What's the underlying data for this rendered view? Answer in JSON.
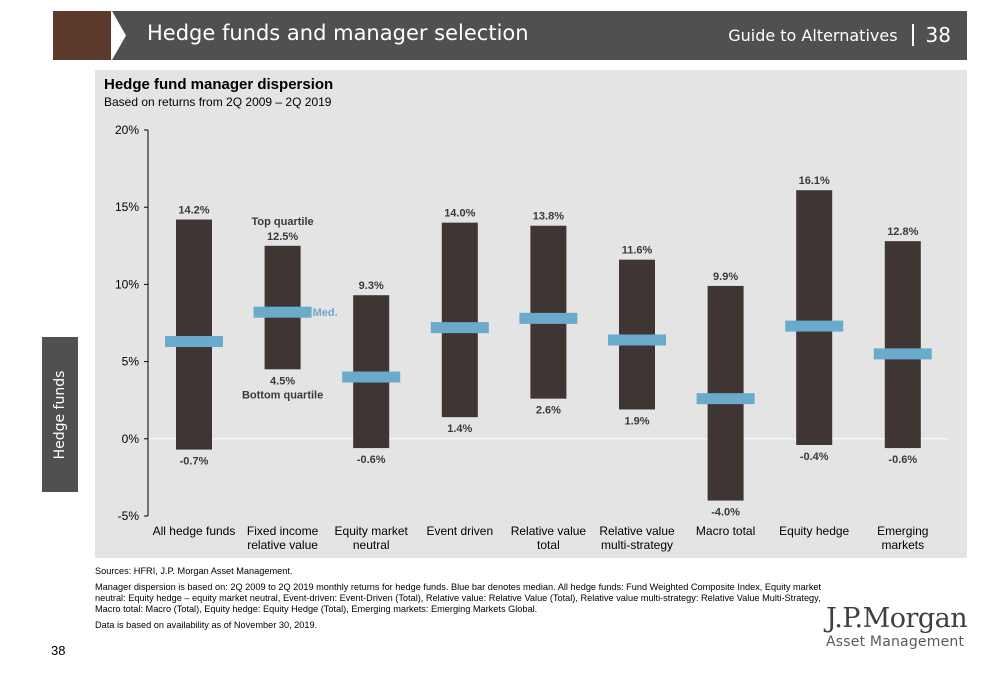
{
  "header": {
    "title": "Hedge funds and manager selection",
    "guide": "Guide to Alternatives",
    "page": "38"
  },
  "side_tab": "Hedge funds",
  "chart_data": {
    "type": "bar",
    "title": "Hedge fund manager dispersion",
    "subtitle": "Based on returns from 2Q 2009 – 2Q 2019",
    "ylim": [
      -5,
      20
    ],
    "yticks": [
      "20%",
      "15%",
      "10%",
      "5%",
      "0%",
      "-5%"
    ],
    "ytick_values": [
      20,
      15,
      10,
      5,
      0,
      -5
    ],
    "categories": [
      [
        "All hedge funds"
      ],
      [
        "Fixed income",
        "relative value"
      ],
      [
        "Equity market",
        "neutral"
      ],
      [
        "Event driven"
      ],
      [
        "Relative value",
        "total"
      ],
      [
        "Relative value",
        "multi-strategy"
      ],
      [
        "Macro total"
      ],
      [
        "Equity hedge"
      ],
      [
        "Emerging",
        "markets"
      ]
    ],
    "series": [
      {
        "name": "Top quartile",
        "values": [
          14.2,
          12.5,
          9.3,
          14.0,
          13.8,
          11.6,
          9.9,
          16.1,
          12.8
        ]
      },
      {
        "name": "Bottom quartile",
        "values": [
          -0.7,
          4.5,
          -0.6,
          1.4,
          2.6,
          1.9,
          -4.0,
          -0.4,
          -0.6
        ]
      },
      {
        "name": "Med.",
        "values": [
          6.3,
          8.2,
          4.0,
          7.2,
          7.8,
          6.4,
          2.6,
          7.3,
          5.5
        ]
      }
    ],
    "top_labels": [
      "14.2%",
      "12.5%",
      "9.3%",
      "14.0%",
      "13.8%",
      "11.6%",
      "9.9%",
      "16.1%",
      "12.8%"
    ],
    "bottom_labels": [
      "-0.7%",
      "4.5%",
      "-0.6%",
      "1.4%",
      "2.6%",
      "1.9%",
      "-4.0%",
      "-0.4%",
      "-0.6%"
    ],
    "annotations": {
      "top": "Top quartile",
      "bottom": "Bottom quartile",
      "median": "Med."
    },
    "colors": {
      "bar": "#3f3634",
      "median": "#6aaacb",
      "panel": "#e4e4e4",
      "axis": "#000000"
    }
  },
  "footnotes": {
    "sources": "Sources: HFRI, J.P. Morgan Asset Management.",
    "note": "Manager dispersion is based on: 2Q 2009 to 2Q 2019 monthly returns for hedge funds. Blue bar denotes median. All hedge funds: Fund Weighted Composite Index, Equity market neutral: Equity hedge – equity market neutral, Event-driven: Event-Driven (Total), Relative value: Relative Value (Total), Relative value multi-strategy: Relative Value Multi-Strategy, Macro total: Macro (Total), Equity hedge: Equity Hedge (Total), Emerging markets: Emerging Markets Global.",
    "availability": "Data is based on availability as of November 30, 2019."
  },
  "page_number": "38",
  "logo": {
    "main": "J.P.Morgan",
    "sub": "Asset Management"
  }
}
